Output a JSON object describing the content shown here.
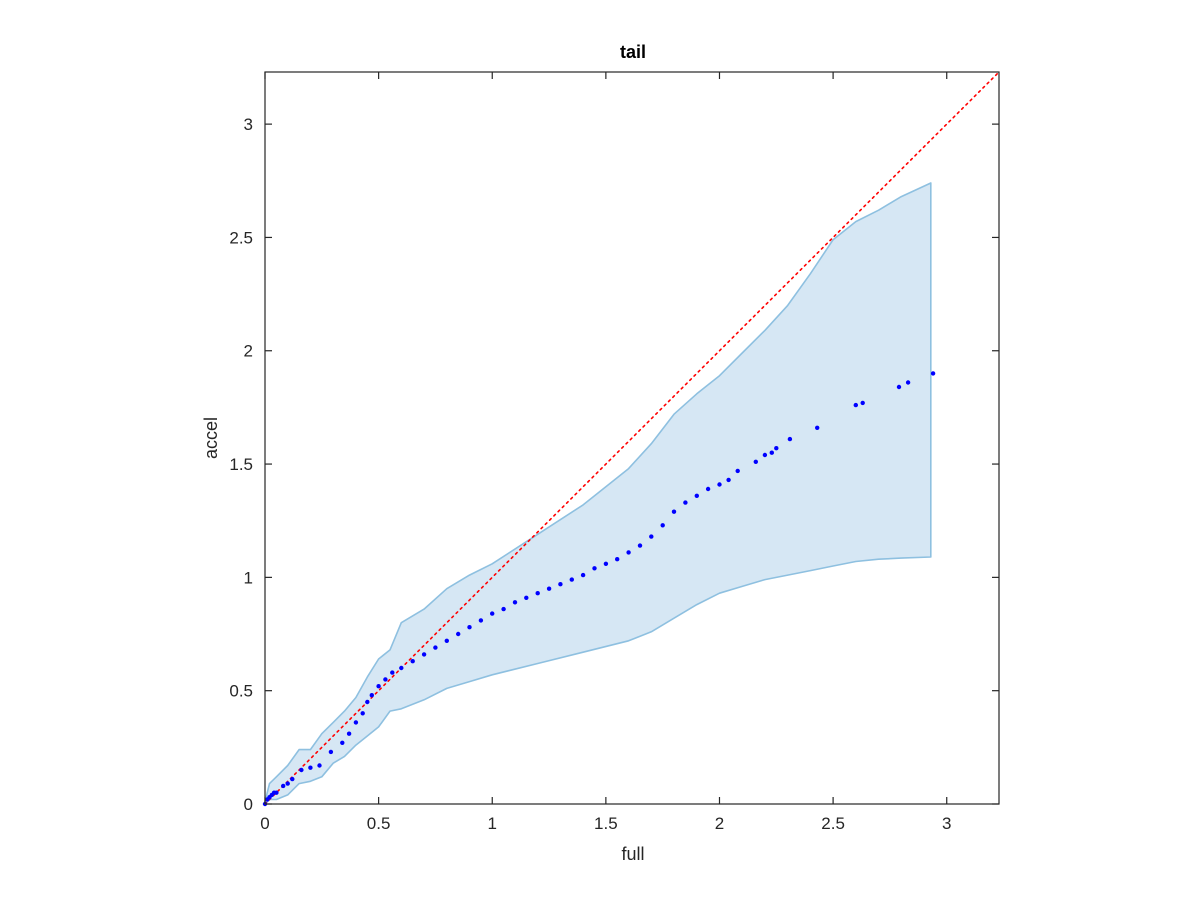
{
  "chart_data": {
    "type": "scatter",
    "title": "tail",
    "xlabel": "full",
    "ylabel": "accel",
    "xlim": [
      0,
      3.23
    ],
    "ylim": [
      0,
      3.23
    ],
    "xticks": [
      0,
      0.5,
      1,
      1.5,
      2,
      2.5,
      3
    ],
    "xtick_labels": [
      "0",
      "0.5",
      "1",
      "1.5",
      "2",
      "2.5",
      "3"
    ],
    "yticks": [
      0,
      0.5,
      1,
      1.5,
      2,
      2.5,
      3
    ],
    "ytick_labels": [
      "0",
      "0.5",
      "1",
      "1.5",
      "2",
      "2.5",
      "3"
    ],
    "grid": false,
    "colors": {
      "points": "#0000ff",
      "reference_line": "#ff0000",
      "band_fill": "#d6e7f4",
      "band_edge": "#8ec0e0",
      "axes": "#262626"
    },
    "reference_line": {
      "style": "dotted",
      "x": [
        0,
        3.23
      ],
      "y": [
        0,
        3.23
      ]
    },
    "band": {
      "x": [
        0,
        0.02,
        0.05,
        0.1,
        0.15,
        0.2,
        0.25,
        0.3,
        0.35,
        0.4,
        0.45,
        0.5,
        0.55,
        0.6,
        0.7,
        0.8,
        0.9,
        1.0,
        1.2,
        1.4,
        1.6,
        1.7,
        1.8,
        1.9,
        2.0,
        2.1,
        2.2,
        2.3,
        2.4,
        2.5,
        2.6,
        2.7,
        2.8,
        2.93
      ],
      "upper": [
        0.01,
        0.09,
        0.12,
        0.17,
        0.24,
        0.24,
        0.31,
        0.36,
        0.41,
        0.47,
        0.56,
        0.64,
        0.68,
        0.8,
        0.86,
        0.95,
        1.01,
        1.06,
        1.19,
        1.32,
        1.48,
        1.59,
        1.72,
        1.81,
        1.89,
        1.99,
        2.09,
        2.2,
        2.34,
        2.49,
        2.57,
        2.62,
        2.68,
        2.74
      ],
      "lower": [
        0.0,
        0.02,
        0.02,
        0.04,
        0.09,
        0.1,
        0.12,
        0.18,
        0.21,
        0.26,
        0.3,
        0.34,
        0.41,
        0.42,
        0.46,
        0.51,
        0.54,
        0.57,
        0.62,
        0.67,
        0.72,
        0.76,
        0.82,
        0.88,
        0.93,
        0.96,
        0.99,
        1.01,
        1.03,
        1.05,
        1.07,
        1.08,
        1.085,
        1.09
      ]
    },
    "points": {
      "x": [
        0.0,
        0.01,
        0.02,
        0.03,
        0.04,
        0.05,
        0.08,
        0.1,
        0.12,
        0.16,
        0.2,
        0.24,
        0.29,
        0.34,
        0.37,
        0.4,
        0.43,
        0.45,
        0.47,
        0.5,
        0.53,
        0.56,
        0.6,
        0.65,
        0.7,
        0.75,
        0.8,
        0.85,
        0.9,
        0.95,
        1.0,
        1.05,
        1.1,
        1.15,
        1.2,
        1.25,
        1.3,
        1.35,
        1.4,
        1.45,
        1.5,
        1.55,
        1.6,
        1.65,
        1.7,
        1.75,
        1.8,
        1.85,
        1.9,
        1.95,
        2.0,
        2.04,
        2.08,
        2.16,
        2.2,
        2.23,
        2.25,
        2.31,
        2.43,
        2.6,
        2.63,
        2.79,
        2.83,
        2.94
      ],
      "y": [
        0.0,
        0.02,
        0.03,
        0.04,
        0.05,
        0.05,
        0.08,
        0.09,
        0.11,
        0.15,
        0.16,
        0.17,
        0.23,
        0.27,
        0.31,
        0.36,
        0.4,
        0.45,
        0.48,
        0.52,
        0.55,
        0.58,
        0.6,
        0.63,
        0.66,
        0.69,
        0.72,
        0.75,
        0.78,
        0.81,
        0.84,
        0.86,
        0.89,
        0.91,
        0.93,
        0.95,
        0.97,
        0.99,
        1.01,
        1.04,
        1.06,
        1.08,
        1.11,
        1.14,
        1.18,
        1.23,
        1.29,
        1.33,
        1.36,
        1.39,
        1.41,
        1.43,
        1.47,
        1.51,
        1.54,
        1.55,
        1.57,
        1.61,
        1.66,
        1.76,
        1.77,
        1.84,
        1.86,
        1.9
      ]
    }
  }
}
